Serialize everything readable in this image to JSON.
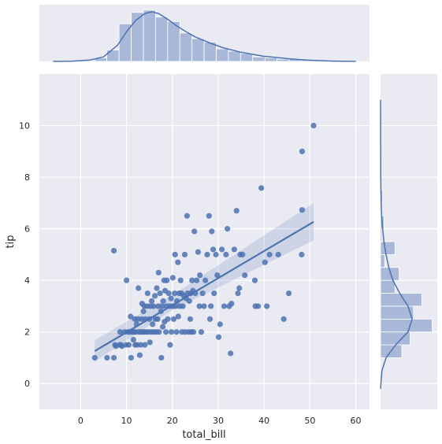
{
  "chart_data": {
    "type": "scatter",
    "xlabel": "total_bill",
    "ylabel": "tip",
    "xlim": [
      -9,
      63
    ],
    "ylim": [
      -1,
      12
    ],
    "x_ticks": [
      0,
      10,
      20,
      30,
      40,
      50,
      60
    ],
    "y_ticks": [
      0,
      2,
      4,
      6,
      8,
      10
    ],
    "grid": true,
    "colors": {
      "background": "#eaeaf2",
      "grid": "#ffffff",
      "point": "#4c72b0",
      "hist": "#a9b8d8"
    },
    "points": [
      [
        3.07,
        1.0
      ],
      [
        5.75,
        1.0
      ],
      [
        7.25,
        1.0
      ],
      [
        7.25,
        5.15
      ],
      [
        7.5,
        1.5
      ],
      [
        7.7,
        1.45
      ],
      [
        8.5,
        1.5
      ],
      [
        8.6,
        2.0
      ],
      [
        8.8,
        1.5
      ],
      [
        9.0,
        1.45
      ],
      [
        9.6,
        2.0
      ],
      [
        9.9,
        1.5
      ],
      [
        10.0,
        4.0
      ],
      [
        10.3,
        2.0
      ],
      [
        10.5,
        1.5
      ],
      [
        10.7,
        2.0
      ],
      [
        10.9,
        2.6
      ],
      [
        11.0,
        1.0
      ],
      [
        11.2,
        2.0
      ],
      [
        11.5,
        1.7
      ],
      [
        11.6,
        2.0
      ],
      [
        11.8,
        2.5
      ],
      [
        11.9,
        1.5
      ],
      [
        12.0,
        2.0
      ],
      [
        12.2,
        2.3
      ],
      [
        12.3,
        1.5
      ],
      [
        12.5,
        2.5
      ],
      [
        12.6,
        3.7
      ],
      [
        12.7,
        2.0
      ],
      [
        12.9,
        1.1
      ],
      [
        13.0,
        2.0
      ],
      [
        13.1,
        1.5
      ],
      [
        13.3,
        2.5
      ],
      [
        13.4,
        3.1
      ],
      [
        13.5,
        2.0
      ],
      [
        13.7,
        2.8
      ],
      [
        13.8,
        2.0
      ],
      [
        13.9,
        3.0
      ],
      [
        14.0,
        1.5
      ],
      [
        14.1,
        2.5
      ],
      [
        14.3,
        2.0
      ],
      [
        14.5,
        3.0
      ],
      [
        14.6,
        3.5
      ],
      [
        14.8,
        2.0
      ],
      [
        15.0,
        2.5
      ],
      [
        15.1,
        1.6
      ],
      [
        15.2,
        3.0
      ],
      [
        15.4,
        2.0
      ],
      [
        15.5,
        3.2
      ],
      [
        15.7,
        2.3
      ],
      [
        15.9,
        3.0
      ],
      [
        16.0,
        2.0
      ],
      [
        16.2,
        3.4
      ],
      [
        16.3,
        2.5
      ],
      [
        16.5,
        2.0
      ],
      [
        16.6,
        3.7
      ],
      [
        16.8,
        2.5
      ],
      [
        16.9,
        3.0
      ],
      [
        17.0,
        4.3
      ],
      [
        17.1,
        2.0
      ],
      [
        17.3,
        3.5
      ],
      [
        17.5,
        2.8
      ],
      [
        17.6,
        1.0
      ],
      [
        17.8,
        3.0
      ],
      [
        17.9,
        2.2
      ],
      [
        18.0,
        3.2
      ],
      [
        18.2,
        4.0
      ],
      [
        18.3,
        2.4
      ],
      [
        18.4,
        3.6
      ],
      [
        18.6,
        2.0
      ],
      [
        18.7,
        3.0
      ],
      [
        18.8,
        4.0
      ],
      [
        19.0,
        2.5
      ],
      [
        19.2,
        3.5
      ],
      [
        19.4,
        3.0
      ],
      [
        19.5,
        1.5
      ],
      [
        19.7,
        3.3
      ],
      [
        19.8,
        2.0
      ],
      [
        20.0,
        3.0
      ],
      [
        20.1,
        4.1
      ],
      [
        20.3,
        2.5
      ],
      [
        20.5,
        3.5
      ],
      [
        20.6,
        5.0
      ],
      [
        20.7,
        3.0
      ],
      [
        20.9,
        2.0
      ],
      [
        21.0,
        3.2
      ],
      [
        21.2,
        4.7
      ],
      [
        21.3,
        2.6
      ],
      [
        21.5,
        3.5
      ],
      [
        21.6,
        3.0
      ],
      [
        21.8,
        4.0
      ],
      [
        22.0,
        3.5
      ],
      [
        22.1,
        2.0
      ],
      [
        22.3,
        3.0
      ],
      [
        22.5,
        3.4
      ],
      [
        22.7,
        5.0
      ],
      [
        22.8,
        2.0
      ],
      [
        23.0,
        3.3
      ],
      [
        23.2,
        6.5
      ],
      [
        23.3,
        3.5
      ],
      [
        23.5,
        2.0
      ],
      [
        23.7,
        3.2
      ],
      [
        23.9,
        2.5
      ],
      [
        24.0,
        3.5
      ],
      [
        24.1,
        2.0
      ],
      [
        24.3,
        4.0
      ],
      [
        24.5,
        3.6
      ],
      [
        24.6,
        2.0
      ],
      [
        24.8,
        5.9
      ],
      [
        25.0,
        3.5
      ],
      [
        25.3,
        4.0
      ],
      [
        25.6,
        5.1
      ],
      [
        25.9,
        3.0
      ],
      [
        26.0,
        4.2
      ],
      [
        26.3,
        2.0
      ],
      [
        26.6,
        3.5
      ],
      [
        26.9,
        3.0
      ],
      [
        27.2,
        4.0
      ],
      [
        27.6,
        5.0
      ],
      [
        28.0,
        6.5
      ],
      [
        28.2,
        2.5
      ],
      [
        28.4,
        3.0
      ],
      [
        28.6,
        5.9
      ],
      [
        28.9,
        5.2
      ],
      [
        29.1,
        3.5
      ],
      [
        29.5,
        5.0
      ],
      [
        29.8,
        4.2
      ],
      [
        30.1,
        1.8
      ],
      [
        30.4,
        2.3
      ],
      [
        30.8,
        5.2
      ],
      [
        31.3,
        3.0
      ],
      [
        31.7,
        5.0
      ],
      [
        32.0,
        6.0
      ],
      [
        32.4,
        3.0
      ],
      [
        32.7,
        1.17
      ],
      [
        32.9,
        3.1
      ],
      [
        33.5,
        5.2
      ],
      [
        34.0,
        6.7
      ],
      [
        34.3,
        3.5
      ],
      [
        34.6,
        3.7
      ],
      [
        34.8,
        5.0
      ],
      [
        35.3,
        5.0
      ],
      [
        35.8,
        4.2
      ],
      [
        38.0,
        4.0
      ],
      [
        38.1,
        3.0
      ],
      [
        38.7,
        3.0
      ],
      [
        39.4,
        7.58
      ],
      [
        40.2,
        4.7
      ],
      [
        40.6,
        3.0
      ],
      [
        41.2,
        5.0
      ],
      [
        43.1,
        5.0
      ],
      [
        44.3,
        2.5
      ],
      [
        45.4,
        3.5
      ],
      [
        48.2,
        5.0
      ],
      [
        48.3,
        9.0
      ],
      [
        48.3,
        6.73
      ],
      [
        50.8,
        10.0
      ]
    ],
    "regression": {
      "x": [
        3.07,
        50.81
      ],
      "y": [
        1.26,
        6.27
      ],
      "ci_lower": [
        0.85,
        5.55
      ],
      "ci_upper": [
        1.68,
        7.0
      ],
      "ci_mid_lower": [
        2.85,
        3.15
      ],
      "ci_mid_upper": [
        3.12,
        3.43
      ],
      "ci_mid_x": 20.0
    },
    "marginal_x": {
      "bins": [
        3.07,
        5.72,
        8.37,
        11.03,
        13.68,
        16.33,
        18.98,
        21.63,
        24.28,
        26.93,
        29.58,
        32.23,
        34.88,
        37.53,
        40.19,
        42.84,
        45.49,
        48.14,
        50.79
      ],
      "counts": [
        3,
        10,
        33,
        43,
        45,
        39,
        35,
        25,
        20,
        17,
        11,
        9,
        7,
        4,
        3,
        2,
        2,
        2
      ],
      "kde_x": [
        -6,
        -2,
        2,
        5,
        8,
        10,
        12,
        14,
        15.5,
        17,
        19,
        21,
        23,
        25,
        28,
        31,
        35,
        40,
        45,
        50,
        55,
        60
      ],
      "kde_y": [
        0.0,
        0.2,
        1.2,
        4.0,
        14.0,
        26.0,
        36.0,
        42.0,
        43.5,
        42.0,
        37.0,
        31.0,
        26.0,
        21.5,
        16.5,
        12.0,
        8.0,
        4.5,
        2.5,
        1.0,
        0.3,
        0.0
      ]
    },
    "marginal_y": {
      "bins": [
        1.0,
        1.5,
        2.0,
        2.5,
        3.0,
        3.5,
        4.0,
        4.5,
        5.0,
        5.5,
        6.0,
        6.5,
        7.0,
        7.5,
        8.0,
        8.5,
        9.0,
        9.5,
        10.0
      ],
      "counts": [
        31,
        43,
        75,
        48,
        60,
        21,
        27,
        6,
        21,
        2,
        5,
        1,
        3,
        0,
        0,
        0,
        0,
        0
      ],
      "kde_y": [
        -0.2,
        0.5,
        1.0,
        1.5,
        2.0,
        2.5,
        3.0,
        3.5,
        4.0,
        4.5,
        5.0,
        5.5,
        6.0,
        6.5,
        7.0,
        8.0,
        9.0,
        10.0,
        11.0
      ],
      "kde_x": [
        0.0,
        2.0,
        8.0,
        22.0,
        40.0,
        46.0,
        40.0,
        28.0,
        18.0,
        12.0,
        8.0,
        5.0,
        3.0,
        1.6,
        0.8,
        0.3,
        0.2,
        0.1,
        0.0
      ]
    }
  }
}
